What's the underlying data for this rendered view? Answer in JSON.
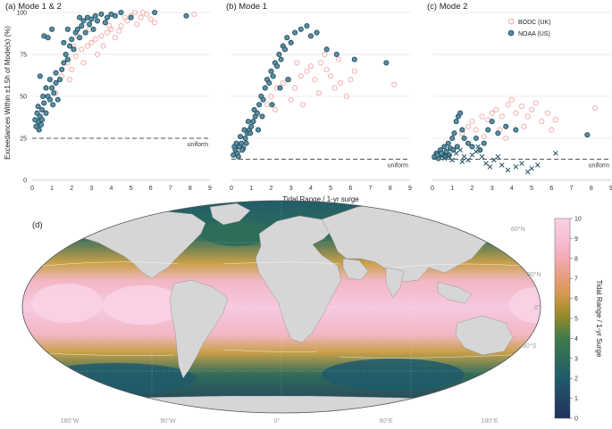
{
  "colors": {
    "bodc": "#f4a6a6",
    "noaa": "#1f4e63",
    "noaa_fill": "#5d8fa0",
    "grid": "#d8d8d8",
    "uniform_line": "#555555",
    "land": "#d6d6d6",
    "ocean_high": "#f7c9e0",
    "ocean_low": "#24305e"
  },
  "chart_data": [
    {
      "type": "scatter",
      "title": "(a) Mode 1 & 2",
      "ylabel": "Exceedances Within ±1.5h of Mode(s) (%)",
      "xlabel": "",
      "xlim": [
        0,
        9
      ],
      "ylim": [
        0,
        100
      ],
      "xticks": [
        "0",
        "1",
        "2",
        "3",
        "4",
        "5",
        "6",
        "7",
        "8",
        "9"
      ],
      "yticks": [
        "0",
        "25",
        "50",
        "75",
        "100"
      ],
      "uniform": {
        "label": "uniform",
        "value": 25
      },
      "series": [
        {
          "name": "BODC (UK)",
          "marker": "circle-open",
          "points": [
            [
              1.2,
              52
            ],
            [
              1.5,
              62
            ],
            [
              1.8,
              70
            ],
            [
              2.0,
              66
            ],
            [
              2.2,
              74
            ],
            [
              2.5,
              78
            ],
            [
              2.8,
              80
            ],
            [
              3.0,
              82
            ],
            [
              3.2,
              84
            ],
            [
              3.5,
              86
            ],
            [
              3.8,
              88
            ],
            [
              4.0,
              90
            ],
            [
              4.2,
              85
            ],
            [
              4.5,
              92
            ],
            [
              4.8,
              95
            ],
            [
              5.0,
              98
            ],
            [
              5.2,
              100
            ],
            [
              5.5,
              97
            ],
            [
              5.8,
              99
            ],
            [
              6.0,
              96
            ],
            [
              6.2,
              94
            ],
            [
              3.3,
              75
            ],
            [
              2.6,
              70
            ],
            [
              1.9,
              60
            ],
            [
              3.9,
              92
            ],
            [
              4.4,
              89
            ],
            [
              5.3,
              93
            ],
            [
              2.3,
              86
            ],
            [
              2.9,
              90
            ],
            [
              3.6,
              80
            ],
            [
              8.2,
              99
            ],
            [
              4.7,
              97
            ],
            [
              5.6,
              100
            ],
            [
              2.1,
              80
            ]
          ]
        },
        {
          "name": "NOAA (US)",
          "marker": "circle-filled",
          "points": [
            [
              0.2,
              32
            ],
            [
              0.3,
              35
            ],
            [
              0.35,
              30
            ],
            [
              0.4,
              38
            ],
            [
              0.5,
              42
            ],
            [
              0.5,
              36
            ],
            [
              0.6,
              46
            ],
            [
              0.7,
              40
            ],
            [
              0.8,
              50
            ],
            [
              0.9,
              48
            ],
            [
              1.0,
              55
            ],
            [
              1.1,
              52
            ],
            [
              1.2,
              58
            ],
            [
              1.3,
              48
            ],
            [
              1.4,
              60
            ],
            [
              1.5,
              66
            ],
            [
              1.6,
              70
            ],
            [
              1.7,
              75
            ],
            [
              1.8,
              72
            ],
            [
              1.9,
              80
            ],
            [
              2.0,
              84
            ],
            [
              2.1,
              78
            ],
            [
              2.2,
              88
            ],
            [
              2.3,
              90
            ],
            [
              2.4,
              85
            ],
            [
              2.5,
              92
            ],
            [
              2.6,
              95
            ],
            [
              2.7,
              88
            ],
            [
              2.8,
              97
            ],
            [
              2.9,
              93
            ],
            [
              3.0,
              96
            ],
            [
              3.1,
              90
            ],
            [
              3.2,
              98
            ],
            [
              3.3,
              95
            ],
            [
              3.5,
              99
            ],
            [
              3.7,
              94
            ],
            [
              3.8,
              97
            ],
            [
              4.0,
              99
            ],
            [
              4.2,
              98
            ],
            [
              4.5,
              100
            ],
            [
              5.0,
              97
            ],
            [
              6.2,
              100
            ],
            [
              7.8,
              98
            ],
            [
              0.4,
              62
            ],
            [
              0.6,
              86
            ],
            [
              0.8,
              85
            ],
            [
              1.0,
              90
            ],
            [
              0.3,
              44
            ],
            [
              0.25,
              40
            ],
            [
              0.45,
              33
            ],
            [
              0.7,
              55
            ],
            [
              0.9,
              60
            ],
            [
              1.2,
              64
            ],
            [
              1.6,
              82
            ],
            [
              1.8,
              90
            ],
            [
              2.4,
              97
            ],
            [
              0.15,
              36
            ],
            [
              0.55,
              50
            ],
            [
              1.05,
              45
            ]
          ]
        }
      ]
    },
    {
      "type": "scatter",
      "title": "(b) Mode 1",
      "xlabel": "Tidal Range / 1-yr surge",
      "xlim": [
        0,
        9
      ],
      "ylim": [
        0,
        100
      ],
      "xticks": [
        "0",
        "1",
        "2",
        "3",
        "4",
        "5",
        "6",
        "7",
        "8",
        "9"
      ],
      "uniform": {
        "label": "uniform",
        "value": 12.5
      },
      "series": [
        {
          "name": "BODC (UK)",
          "marker": "circle-open",
          "points": [
            [
              1.8,
              45
            ],
            [
              2.0,
              50
            ],
            [
              2.3,
              55
            ],
            [
              2.6,
              58
            ],
            [
              2.9,
              60
            ],
            [
              3.2,
              55
            ],
            [
              3.5,
              62
            ],
            [
              3.8,
              65
            ],
            [
              4.0,
              68
            ],
            [
              4.2,
              60
            ],
            [
              4.5,
              70
            ],
            [
              4.8,
              66
            ],
            [
              5.0,
              62
            ],
            [
              5.2,
              55
            ],
            [
              5.5,
              58
            ],
            [
              5.8,
              50
            ],
            [
              6.0,
              60
            ],
            [
              6.2,
              65
            ],
            [
              3.0,
              48
            ],
            [
              3.6,
              45
            ],
            [
              4.4,
              52
            ],
            [
              2.2,
              42
            ],
            [
              8.2,
              57
            ],
            [
              3.3,
              70
            ],
            [
              4.7,
              75
            ],
            [
              5.4,
              72
            ]
          ]
        },
        {
          "name": "NOAA (US)",
          "marker": "circle-filled",
          "points": [
            [
              0.1,
              15
            ],
            [
              0.2,
              18
            ],
            [
              0.3,
              16
            ],
            [
              0.4,
              20
            ],
            [
              0.5,
              22
            ],
            [
              0.6,
              19
            ],
            [
              0.7,
              25
            ],
            [
              0.8,
              28
            ],
            [
              0.9,
              30
            ],
            [
              1.0,
              32
            ],
            [
              1.1,
              35
            ],
            [
              1.2,
              38
            ],
            [
              1.3,
              40
            ],
            [
              1.4,
              45
            ],
            [
              1.5,
              50
            ],
            [
              1.6,
              48
            ],
            [
              1.7,
              55
            ],
            [
              1.8,
              60
            ],
            [
              1.9,
              58
            ],
            [
              2.0,
              65
            ],
            [
              2.1,
              62
            ],
            [
              2.2,
              70
            ],
            [
              2.3,
              68
            ],
            [
              2.4,
              75
            ],
            [
              2.5,
              72
            ],
            [
              2.6,
              80
            ],
            [
              2.7,
              78
            ],
            [
              2.8,
              85
            ],
            [
              3.0,
              82
            ],
            [
              3.2,
              88
            ],
            [
              3.5,
              90
            ],
            [
              3.8,
              92
            ],
            [
              4.0,
              86
            ],
            [
              4.3,
              88
            ],
            [
              4.8,
              78
            ],
            [
              5.3,
              75
            ],
            [
              6.2,
              72
            ],
            [
              7.8,
              70
            ],
            [
              0.15,
              20
            ],
            [
              0.25,
              22
            ],
            [
              0.35,
              14
            ],
            [
              0.45,
              26
            ],
            [
              0.55,
              18
            ],
            [
              0.65,
              30
            ],
            [
              0.75,
              22
            ],
            [
              0.85,
              35
            ],
            [
              0.95,
              28
            ],
            [
              1.15,
              42
            ],
            [
              1.35,
              30
            ],
            [
              1.55,
              38
            ],
            [
              2.05,
              45
            ],
            [
              2.45,
              55
            ],
            [
              2.85,
              60
            ]
          ]
        }
      ]
    },
    {
      "type": "scatter",
      "title": "(c) Mode 2",
      "xlabel": "",
      "xlim": [
        0,
        9
      ],
      "ylim": [
        0,
        100
      ],
      "xticks": [
        "0",
        "1",
        "2",
        "3",
        "4",
        "5",
        "6",
        "7",
        "8",
        "9"
      ],
      "uniform": {
        "label": "uniform",
        "value": 12.5
      },
      "legend": {
        "position": "top-right",
        "entries": [
          "BODC (UK)",
          "NOAA (US)"
        ]
      },
      "series": [
        {
          "name": "BODC (UK)",
          "marker": "circle-open",
          "points": [
            [
              1.5,
              28
            ],
            [
              1.8,
              32
            ],
            [
              2.0,
              35
            ],
            [
              2.2,
              30
            ],
            [
              2.5,
              38
            ],
            [
              2.8,
              36
            ],
            [
              3.0,
              40
            ],
            [
              3.2,
              42
            ],
            [
              3.5,
              38
            ],
            [
              3.8,
              45
            ],
            [
              4.0,
              48
            ],
            [
              4.2,
              40
            ],
            [
              4.5,
              44
            ],
            [
              4.8,
              38
            ],
            [
              5.0,
              42
            ],
            [
              5.2,
              46
            ],
            [
              5.5,
              35
            ],
            [
              5.8,
              40
            ],
            [
              6.0,
              30
            ],
            [
              6.2,
              36
            ],
            [
              8.2,
              43
            ],
            [
              3.4,
              30
            ],
            [
              2.6,
              26
            ],
            [
              4.6,
              32
            ],
            [
              3.7,
              25
            ]
          ]
        },
        {
          "name": "NOAA (US)",
          "marker": "circle-filled",
          "points": [
            [
              0.1,
              14
            ],
            [
              0.2,
              16
            ],
            [
              0.3,
              13
            ],
            [
              0.4,
              18
            ],
            [
              0.5,
              15
            ],
            [
              0.6,
              20
            ],
            [
              0.7,
              17
            ],
            [
              0.8,
              22
            ],
            [
              0.9,
              19
            ],
            [
              1.0,
              25
            ],
            [
              1.1,
              28
            ],
            [
              1.2,
              35
            ],
            [
              1.3,
              38
            ],
            [
              1.4,
              40
            ],
            [
              1.5,
              30
            ],
            [
              1.6,
              25
            ],
            [
              1.8,
              22
            ],
            [
              2.0,
              20
            ],
            [
              2.2,
              25
            ],
            [
              2.4,
              18
            ],
            [
              2.6,
              22
            ],
            [
              2.8,
              30
            ],
            [
              3.0,
              35
            ],
            [
              3.3,
              28
            ],
            [
              3.7,
              32
            ],
            [
              4.2,
              30
            ],
            [
              7.8,
              27
            ],
            [
              0.25,
              15
            ],
            [
              0.45,
              16
            ],
            [
              0.65,
              14
            ],
            [
              0.85,
              15
            ],
            [
              1.05,
              18
            ],
            [
              1.25,
              20
            ]
          ]
        },
        {
          "name": "",
          "marker": "x",
          "points": [
            [
              0.8,
              14
            ],
            [
              1.0,
              12
            ],
            [
              1.2,
              16
            ],
            [
              1.4,
              18
            ],
            [
              1.6,
              14
            ],
            [
              1.8,
              12
            ],
            [
              2.0,
              15
            ],
            [
              2.2,
              17
            ],
            [
              2.5,
              14
            ],
            [
              2.7,
              10
            ],
            [
              2.9,
              8
            ],
            [
              3.1,
              12
            ],
            [
              3.3,
              14
            ],
            [
              3.5,
              9
            ],
            [
              3.8,
              6
            ],
            [
              4.2,
              8
            ],
            [
              4.5,
              10
            ],
            [
              4.8,
              5
            ],
            [
              5.0,
              7
            ],
            [
              5.3,
              9
            ],
            [
              6.2,
              16
            ],
            [
              2.3,
              20
            ],
            [
              1.5,
              11
            ],
            [
              0.6,
              13
            ]
          ]
        }
      ]
    },
    {
      "type": "heatmap",
      "title": "(d)",
      "colorbar": {
        "label": "Tidal Range / 1-yr Surge",
        "min": 0,
        "max": 10,
        "ticks": [
          "0",
          "1",
          "2",
          "3",
          "4",
          "5",
          "6",
          "7",
          "8",
          "9",
          "10"
        ]
      },
      "lon_labels": [
        "180°W",
        "90°W",
        "0°",
        "90°E",
        "180°E"
      ],
      "lat_labels": [
        "60°N",
        "30°N",
        "0°",
        "30°S"
      ]
    }
  ]
}
